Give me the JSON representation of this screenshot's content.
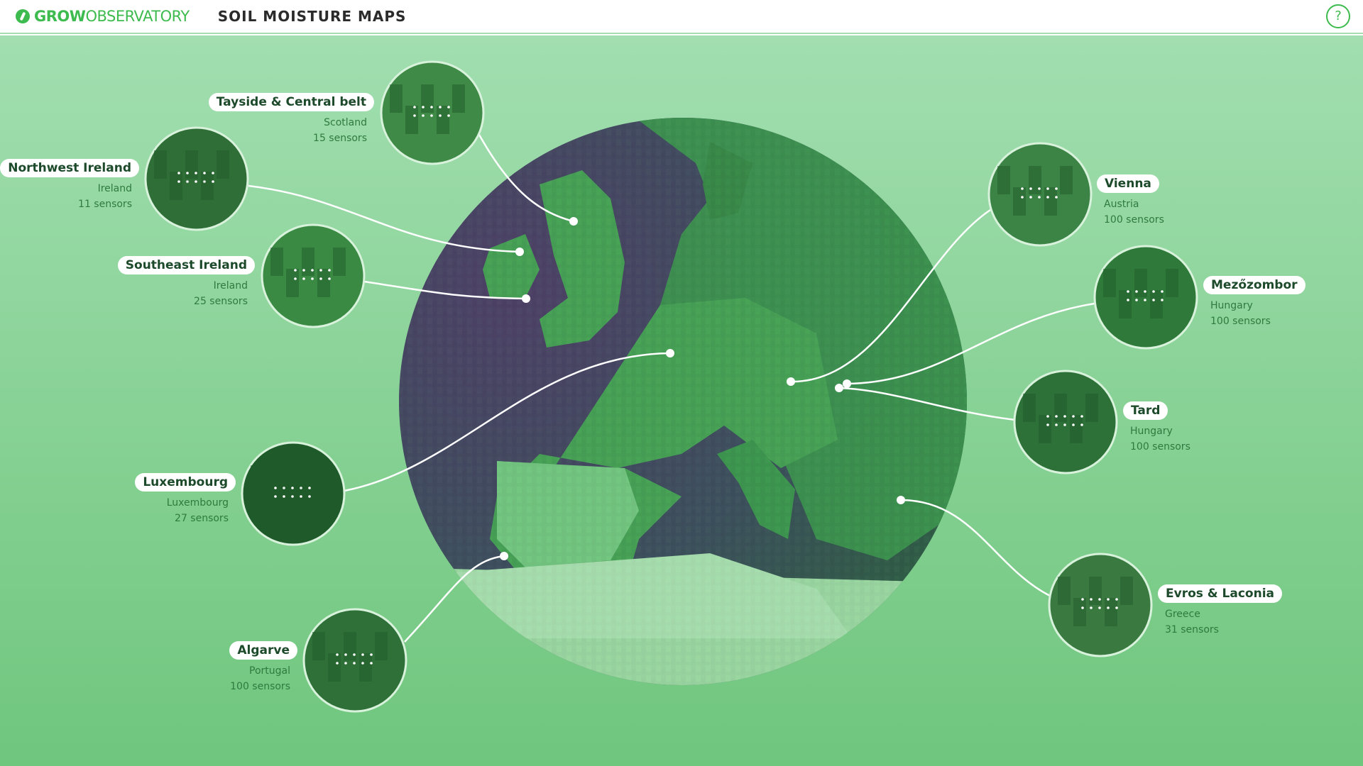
{
  "header": {
    "logo_bold": "GROW",
    "logo_light": "OBSERVATORY",
    "title": "SOIL MOISTURE MAPS",
    "help_icon": "?"
  },
  "colors": {
    "brand": "#3dbb4e",
    "ocean": "#4a3a6a",
    "land": "#3f9a52"
  },
  "sites": [
    {
      "name": "Tayside & Central belt",
      "country": "Scotland",
      "sensors": "15 sensors"
    },
    {
      "name": "Northwest Ireland",
      "country": "Ireland",
      "sensors": "11 sensors"
    },
    {
      "name": "Southeast Ireland",
      "country": "Ireland",
      "sensors": "25 sensors"
    },
    {
      "name": "Luxembourg",
      "country": "Luxembourg",
      "sensors": "27 sensors"
    },
    {
      "name": "Algarve",
      "country": "Portugal",
      "sensors": "100 sensors"
    },
    {
      "name": "Vienna",
      "country": "Austria",
      "sensors": "100 sensors"
    },
    {
      "name": "Mezőzombor",
      "country": "Hungary",
      "sensors": "100 sensors"
    },
    {
      "name": "Tard",
      "country": "Hungary",
      "sensors": "100 sensors"
    },
    {
      "name": "Evros & Laconia",
      "country": "Greece",
      "sensors": "31 sensors"
    }
  ]
}
